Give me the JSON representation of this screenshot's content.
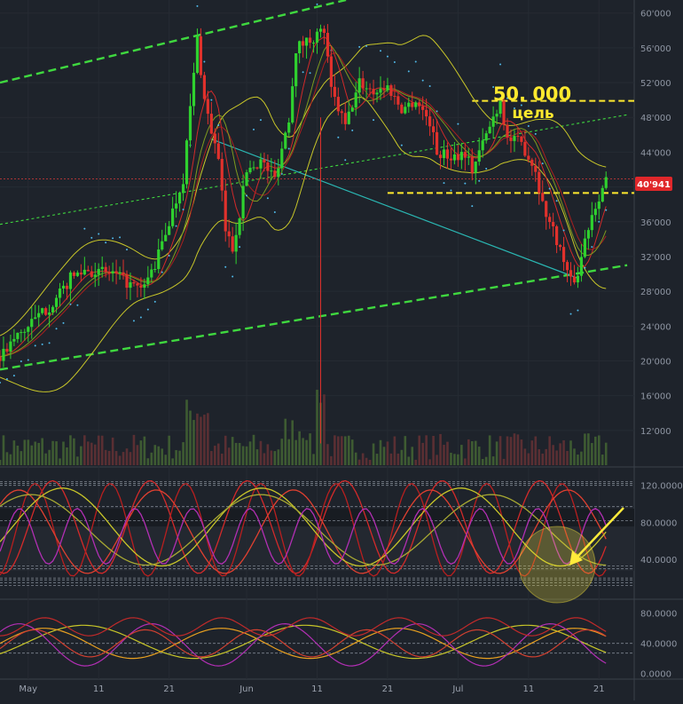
{
  "chart_data": {
    "type": "candlestick",
    "price_axis": {
      "ticks": [
        "60'000",
        "56'000",
        "52'000",
        "48'000",
        "44'000",
        "40'000",
        "36'000",
        "32'000",
        "28'000",
        "24'000",
        "20'000",
        "16'000",
        "12'000"
      ],
      "tick_values": [
        60000,
        56000,
        52000,
        48000,
        44000,
        40000,
        36000,
        32000,
        28000,
        24000,
        20000,
        16000,
        12000
      ],
      "ylim": [
        8000,
        61500
      ]
    },
    "time_axis": {
      "labels": [
        "May",
        "11",
        "21",
        "Jun",
        "11",
        "21",
        "Jul",
        "11",
        "21"
      ],
      "x_days": [
        0,
        10,
        20,
        31,
        41,
        51,
        61,
        71,
        81
      ],
      "xlim": [
        -4,
        86
      ]
    },
    "last_price": {
      "label": "40'941",
      "value": 40941
    },
    "annotations": {
      "target_price": "50. 000",
      "target_word": "цель"
    },
    "close_prices": [
      {
        "day": -4,
        "close": 20500
      },
      {
        "day": -2,
        "close": 22500
      },
      {
        "day": 0,
        "close": 24000
      },
      {
        "day": 2,
        "close": 25500
      },
      {
        "day": 4,
        "close": 27000
      },
      {
        "day": 6,
        "close": 29500
      },
      {
        "day": 8,
        "close": 30500
      },
      {
        "day": 10,
        "close": 30200
      },
      {
        "day": 12,
        "close": 30000
      },
      {
        "day": 14,
        "close": 29000
      },
      {
        "day": 16,
        "close": 28000
      },
      {
        "day": 18,
        "close": 31000
      },
      {
        "day": 20,
        "close": 36000
      },
      {
        "day": 22,
        "close": 41000
      },
      {
        "day": 24,
        "close": 57000
      },
      {
        "day": 25,
        "close": 50000
      },
      {
        "day": 27,
        "close": 43000
      },
      {
        "day": 28,
        "close": 35000
      },
      {
        "day": 29,
        "close": 33000
      },
      {
        "day": 30,
        "close": 37000
      },
      {
        "day": 31,
        "close": 42000
      },
      {
        "day": 33,
        "close": 43000
      },
      {
        "day": 35,
        "close": 41000
      },
      {
        "day": 37,
        "close": 48000
      },
      {
        "day": 38,
        "close": 56000
      },
      {
        "day": 40,
        "close": 57000
      },
      {
        "day": 42,
        "close": 58000
      },
      {
        "day": 43,
        "close": 51000
      },
      {
        "day": 45,
        "close": 47000
      },
      {
        "day": 47,
        "close": 52000
      },
      {
        "day": 49,
        "close": 51000
      },
      {
        "day": 51,
        "close": 51500
      },
      {
        "day": 53,
        "close": 49000
      },
      {
        "day": 55,
        "close": 50000
      },
      {
        "day": 57,
        "close": 47500
      },
      {
        "day": 58,
        "close": 44000
      },
      {
        "day": 60,
        "close": 43500
      },
      {
        "day": 62,
        "close": 44000
      },
      {
        "day": 63,
        "close": 42000
      },
      {
        "day": 65,
        "close": 46000
      },
      {
        "day": 67,
        "close": 50000
      },
      {
        "day": 68,
        "close": 45500
      },
      {
        "day": 70,
        "close": 45000
      },
      {
        "day": 72,
        "close": 42000
      },
      {
        "day": 73,
        "close": 38000
      },
      {
        "day": 75,
        "close": 34000
      },
      {
        "day": 77,
        "close": 29000
      },
      {
        "day": 78,
        "close": 30000
      },
      {
        "day": 79,
        "close": 34000
      },
      {
        "day": 80,
        "close": 37000
      },
      {
        "day": 81,
        "close": 39000
      },
      {
        "day": 82,
        "close": 40941
      }
    ],
    "horizontal_levels": [
      {
        "value": 49900,
        "style": "yellow-dashed"
      },
      {
        "value": 39300,
        "style": "yellow-dashed"
      }
    ],
    "channel_lines": [
      {
        "style": "green-dashed",
        "points": [
          {
            "day": -4,
            "price": 52000
          },
          {
            "day": 58,
            "price": 64000
          }
        ]
      },
      {
        "style": "green-dashed",
        "points": [
          {
            "day": -4,
            "price": 19000
          },
          {
            "day": 85,
            "price": 31000
          }
        ]
      },
      {
        "style": "green-dotted",
        "points": [
          {
            "day": -4,
            "price": 35700
          },
          {
            "day": 85,
            "price": 48300
          }
        ]
      }
    ],
    "trend_line": {
      "points": [
        {
          "day": 26,
          "price": 45500
        },
        {
          "day": 78,
          "price": 29500
        }
      ]
    },
    "indicator1": {
      "ticks": [
        "120.0000",
        "80.0000",
        "40.0000"
      ],
      "tick_values": [
        120,
        80,
        40
      ],
      "ylim": [
        0,
        135
      ]
    },
    "indicator2": {
      "ticks": [
        "80.0000",
        "40.0000",
        "0.0000"
      ],
      "tick_values": [
        80,
        40,
        0
      ],
      "ylim": [
        -4,
        95
      ]
    },
    "colors": {
      "background": "#1e232b",
      "up": "#2fd12f",
      "down": "#e0312c",
      "bollinger": "#c8c629",
      "level": "#ffe92e",
      "channel": "#3fd83f",
      "trend": "#2ab7b3",
      "sar": "#4fb8e8",
      "price_tag": "#e0272a",
      "highlight": "#ffeb3b"
    }
  }
}
